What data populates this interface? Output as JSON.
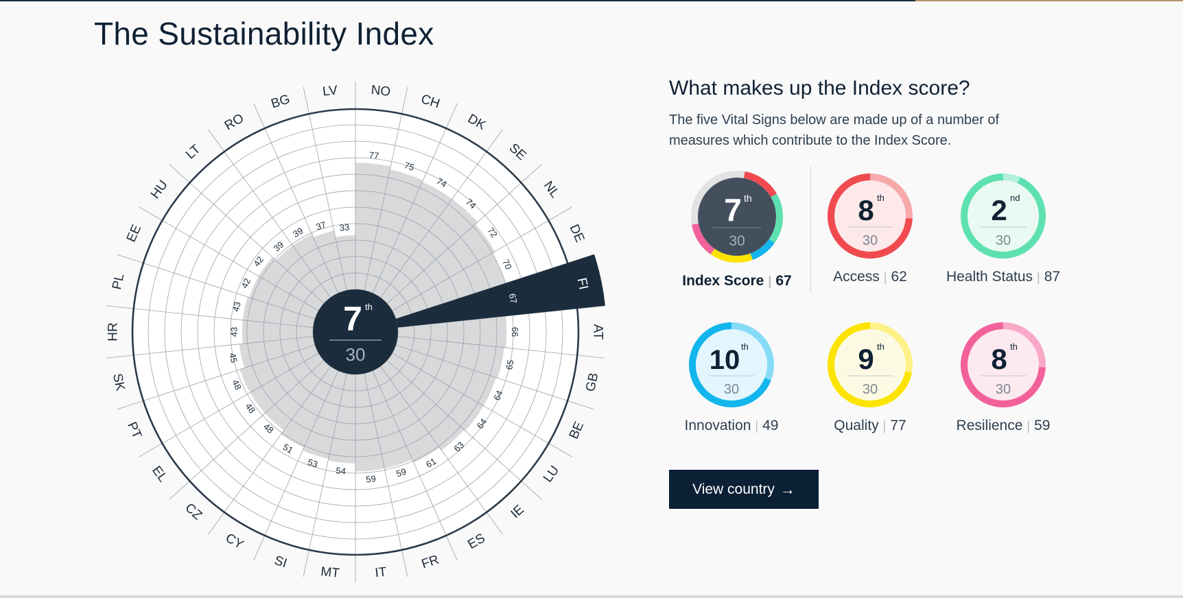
{
  "page": {
    "title": "The Sustainability Index"
  },
  "side": {
    "heading": "What makes up the Index score?",
    "description": "The five Vital Signs below are made up of a number of measures which contribute to the Index Score."
  },
  "center": {
    "rank": "7",
    "suffix": "th",
    "total": "30"
  },
  "metrics": [
    {
      "key": "index",
      "rank": "7",
      "suffix": "th",
      "total": "30",
      "label": "Index Score",
      "score": "67",
      "progress": 0.77
    },
    {
      "key": "access",
      "rank": "8",
      "suffix": "th",
      "total": "30",
      "label": "Access",
      "score": "62",
      "progress": 0.74
    },
    {
      "key": "health",
      "rank": "2",
      "suffix": "nd",
      "total": "30",
      "label": "Health Status",
      "score": "87",
      "progress": 0.935
    },
    {
      "key": "innovation",
      "rank": "10",
      "suffix": "th",
      "total": "30",
      "label": "Innovation",
      "score": "49",
      "progress": 0.69
    },
    {
      "key": "quality",
      "rank": "9",
      "suffix": "th",
      "total": "30",
      "label": "Quality",
      "score": "77",
      "progress": 0.72
    },
    {
      "key": "resilience",
      "rank": "8",
      "suffix": "th",
      "total": "30",
      "label": "Resilience",
      "score": "59",
      "progress": 0.74
    }
  ],
  "colors": {
    "navy": "#1b2d3d",
    "area": "#d8d9db",
    "access": "#f04a4e",
    "access_light": "#f7a9aa",
    "health": "#5fe0b1",
    "health_light": "#b3f0da",
    "innovation": "#12b6ec",
    "innovation_light": "#86dcf7",
    "quality": "#fce400",
    "quality_light": "#fdf187",
    "resilience": "#f2619a",
    "resilience_light": "#f8a9c8",
    "index_gray": "#e3e3e3"
  },
  "cta": {
    "label": "View country",
    "arrow_icon": "arrow-right-icon"
  },
  "chart_data": {
    "type": "radar-bar",
    "highlight": "FI",
    "categories": [
      "NO",
      "CH",
      "DK",
      "SE",
      "NL",
      "DE",
      "FI",
      "AT",
      "GB",
      "BE",
      "LU",
      "IE",
      "ES",
      "FR",
      "IT",
      "MT",
      "SI",
      "CY",
      "CZ",
      "EL",
      "PT",
      "SK",
      "HR",
      "PL",
      "EE",
      "HU",
      "LT",
      "RO",
      "BG",
      "LV"
    ],
    "values": [
      77,
      75,
      74,
      74,
      72,
      70,
      67,
      66,
      65,
      64,
      64,
      63,
      61,
      59,
      59,
      54,
      53,
      51,
      48,
      48,
      48,
      45,
      43,
      43,
      42,
      42,
      39,
      39,
      37,
      33
    ],
    "rlim": [
      0,
      100
    ]
  }
}
